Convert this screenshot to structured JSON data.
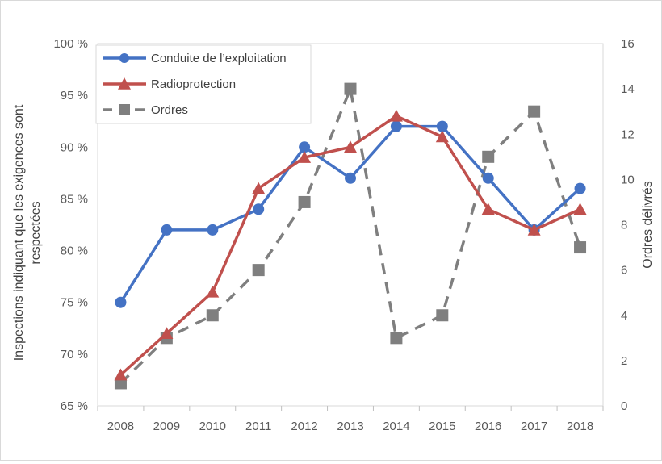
{
  "chart_data": {
    "type": "line",
    "categories": [
      "2008",
      "2009",
      "2010",
      "2011",
      "2012",
      "2013",
      "2014",
      "2015",
      "2016",
      "2017",
      "2018"
    ],
    "series": [
      {
        "name": "Conduite de l’exploitation",
        "axis": "left",
        "unit": "%",
        "values": [
          75,
          82,
          82,
          84,
          90,
          87,
          92,
          92,
          87,
          82,
          86
        ],
        "color": "#4472c4",
        "marker": "circle",
        "line_style": "solid"
      },
      {
        "name": "Radioprotection",
        "axis": "left",
        "unit": "%",
        "values": [
          68,
          72,
          76,
          86,
          89,
          90,
          93,
          91,
          84,
          82,
          84
        ],
        "color": "#c0504d",
        "marker": "triangle",
        "line_style": "solid"
      },
      {
        "name": "Ordres",
        "axis": "right",
        "unit": "count",
        "values": [
          1,
          3,
          4,
          6,
          9,
          14,
          3,
          4,
          11,
          13,
          7
        ],
        "color": "#7f7f7f",
        "marker": "square",
        "line_style": "dashed"
      }
    ],
    "y_left": {
      "label": "Inspections indiquant que les exigences sont respectées",
      "label_lines": [
        "Inspections indiquant que les exigences sont",
        "respectées"
      ],
      "range": [
        65,
        100
      ],
      "ticks": [
        65,
        70,
        75,
        80,
        85,
        90,
        95,
        100
      ],
      "tick_labels": [
        "65 %",
        "70 %",
        "75 %",
        "80 %",
        "85 %",
        "90 %",
        "95 %",
        "100 %"
      ]
    },
    "y_right": {
      "label": "Ordres délivrés",
      "range": [
        0,
        16
      ],
      "ticks": [
        0,
        2,
        4,
        6,
        8,
        10,
        12,
        14,
        16
      ],
      "tick_labels": [
        "0",
        "2",
        "4",
        "6",
        "8",
        "10",
        "12",
        "14",
        "16"
      ]
    },
    "xlabel": "",
    "grid": false,
    "legend_position": "top-left"
  }
}
